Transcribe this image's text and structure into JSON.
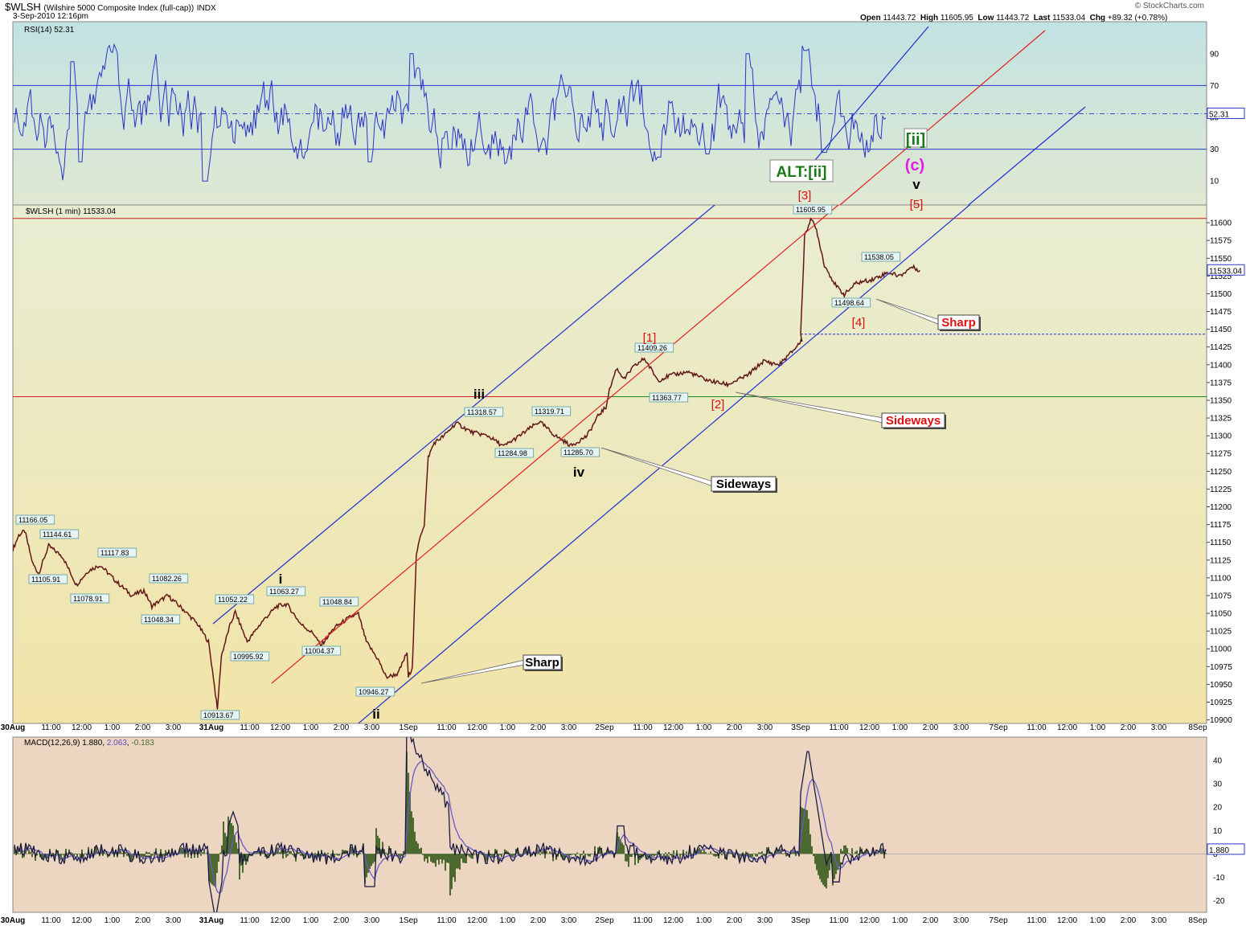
{
  "header": {
    "symbol": "$WLSH",
    "name": "(Wilshire 5000 Composite Index (full-cap))",
    "exchange": "INDX",
    "date": "3-Sep-2010 12:16pm",
    "watermark": "© StockCharts.com",
    "quote": {
      "open_label": "Open",
      "open": "11443.72",
      "high_label": "High",
      "high": "11605.95",
      "low_label": "Low",
      "low": "11443.72",
      "last_label": "Last",
      "last": "11533.04",
      "chg_label": "Chg",
      "chg": "+89.32 (+0.78%)"
    }
  },
  "colors": {
    "rsi_bg": "#c9e4e0",
    "price_bg_top": "#e8edd2",
    "price_bg_bottom": "#f2e4a8",
    "macd_bg": "#ecd6c1",
    "blue_channel": "#1f2fd0",
    "red_channel": "#e02020",
    "price_line": "#222222",
    "price_tick": "#cc0000",
    "rsi_line": "#2a35c8",
    "macd_line": "#1a1a40",
    "signal_line": "#6a5ac8",
    "hist": "#4c6a30",
    "green_label": "#1a7a1a",
    "magenta_label": "#e020e0",
    "red_label": "#e01010"
  },
  "rsi_panel": {
    "legend": "RSI(14) 52.31",
    "last_value": "52.31",
    "levels": [
      70,
      30
    ],
    "y_ticks": [
      "90",
      "70",
      "50",
      "30",
      "10"
    ],
    "ylim": [
      0,
      100
    ]
  },
  "price_panel": {
    "legend": "$WLSH (1 min) 11533.04",
    "last_value": "11533.04",
    "y_ticks": [
      "11600",
      "11575",
      "11550",
      "11525",
      "11500",
      "11475",
      "11450",
      "11425",
      "11400",
      "11375",
      "11350",
      "11325",
      "11300",
      "11275",
      "11250",
      "11225",
      "11200",
      "11175",
      "11150",
      "11125",
      "11100",
      "11075",
      "11050",
      "11025",
      "11000",
      "10975",
      "10950",
      "10925",
      "10900"
    ]
  },
  "macd_panel": {
    "legend_name": "MACD(12,26,9)",
    "legend_macd": "1.880",
    "legend_signal": "2.063",
    "legend_hist": "-0.183",
    "last_value": "1.880",
    "y_ticks": [
      "40",
      "30",
      "20",
      "10",
      "0",
      "-10",
      "-20"
    ]
  },
  "x_axis": {
    "labels": [
      "30Aug",
      "11:00",
      "12:00",
      "1:00",
      "2:00",
      "3:00",
      "31Aug",
      "11:00",
      "12:00",
      "1:00",
      "2:00",
      "3:00",
      "1Sep",
      "11:00",
      "12:00",
      "1:00",
      "2:00",
      "3:00",
      "2Sep",
      "11:00",
      "12:00",
      "1:00",
      "2:00",
      "3:00",
      "3Sep",
      "11:00",
      "12:00",
      "1:00",
      "2:00",
      "3:00",
      "7Sep",
      "11:00",
      "12:00",
      "1:00",
      "2:00",
      "3:00",
      "8Sep"
    ]
  },
  "price_labels": [
    "11166.05",
    "11144.61",
    "11105.91",
    "11117.83",
    "11078.91",
    "11082.26",
    "11048.34",
    "11052.22",
    "11063.27",
    "10995.92",
    "11004.37",
    "11048.84",
    "10913.67",
    "10946.27",
    "11318.57",
    "11284.98",
    "11319.71",
    "11285.70",
    "11409.26",
    "11363.77",
    "11605.95",
    "11538.05",
    "11498.64"
  ],
  "wave_labels": {
    "i": "i",
    "ii": "ii",
    "iii": "iii",
    "iv": "iv",
    "v": "v",
    "w1": "[1]",
    "w2": "[2]",
    "w3": "[3]",
    "w4": "[4]",
    "w5": "[5]",
    "c": "(c)",
    "ii_bracket": "[ii]",
    "alt": "ALT:[ii]"
  },
  "callouts": {
    "sharp_1": "Sharp",
    "sideways_1": "Sideways",
    "sideways_2": "Sideways",
    "sharp_2": "Sharp"
  },
  "chart_data": {
    "type": "line",
    "title": "$WLSH (Wilshire 5000 Composite Index (full-cap)) INDX",
    "interval": "1 min",
    "x": [
      "30Aug 9:30",
      "30Aug 10:00",
      "30Aug 11:00",
      "30Aug 12:00",
      "30Aug 1:00",
      "30Aug 2:00",
      "30Aug 3:00",
      "30Aug 3:50",
      "31Aug 9:35",
      "31Aug 10:00",
      "31Aug 11:00",
      "31Aug 12:00",
      "31Aug 1:00",
      "31Aug 2:00",
      "31Aug 3:00",
      "31Aug 3:55",
      "1Sep 9:40",
      "1Sep 10:00",
      "1Sep 11:00",
      "1Sep 12:00",
      "1Sep 1:00",
      "1Sep 2:00",
      "1Sep 3:00",
      "1Sep 3:55",
      "2Sep 10:00",
      "2Sep 11:00",
      "2Sep 12:00",
      "2Sep 1:00",
      "2Sep 2:00",
      "2Sep 3:00",
      "2Sep 3:55",
      "3Sep 9:30",
      "3Sep 9:45",
      "3Sep 10:30",
      "3Sep 11:00",
      "3Sep 12:00",
      "3Sep 12:16"
    ],
    "values": [
      11140,
      11166,
      11105,
      11117,
      11085,
      11082,
      11055,
      11030,
      10914,
      11040,
      11010,
      11063,
      11040,
      11048,
      10960,
      10950,
      11145,
      11300,
      11318,
      11290,
      11319,
      11285,
      11295,
      11330,
      11400,
      11380,
      11390,
      11370,
      11375,
      11400,
      11430,
      11443,
      11606,
      11520,
      11499,
      11530,
      11533
    ],
    "ylim": [
      10895,
      11625
    ],
    "rsi_ylim": [
      0,
      100
    ],
    "macd_ylim": [
      -25,
      50
    ]
  }
}
